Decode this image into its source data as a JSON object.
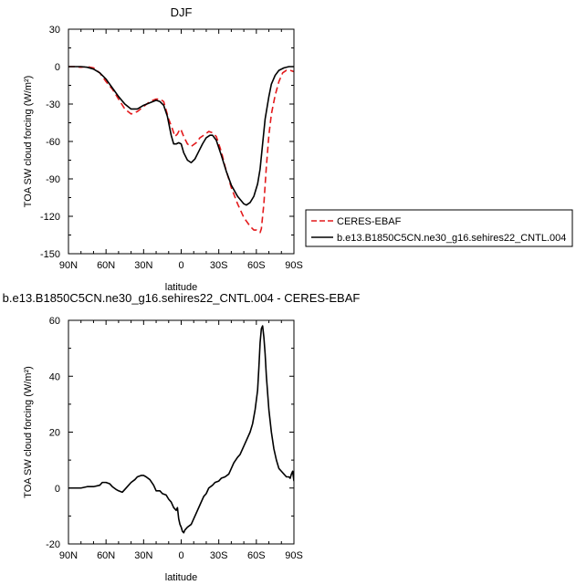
{
  "chart_data": [
    {
      "type": "line",
      "title": "DJF",
      "xlabel": "latitude",
      "ylabel": "TOA SW cloud forcing (W/m²)",
      "xlim": [
        90,
        -90
      ],
      "ylim": [
        -150,
        30
      ],
      "xticks": [
        90,
        60,
        30,
        0,
        -30,
        -60,
        -90
      ],
      "xtick_labels": [
        "90N",
        "60N",
        "30N",
        "0",
        "30S",
        "60S",
        "90S"
      ],
      "yticks": [
        30,
        0,
        -30,
        -60,
        -90,
        -120,
        -150
      ],
      "ytick_labels": [
        "30",
        "0",
        "-30",
        "-60",
        "-90",
        "-120",
        "-150"
      ],
      "legend": "right",
      "series": [
        {
          "name": "CERES-EBAF",
          "color": "#e31a1c",
          "dash": "dashed",
          "x": [
            90,
            85,
            80,
            75,
            70,
            65,
            60,
            55,
            50,
            45,
            40,
            35,
            30,
            25,
            20,
            17,
            14,
            10,
            7,
            5,
            3,
            1,
            0,
            -2,
            -5,
            -8,
            -12,
            -15,
            -18,
            -22,
            -25,
            -28,
            -32,
            -35,
            -40,
            -45,
            -50,
            -55,
            -58,
            -60,
            -63,
            -64,
            -66,
            -68,
            -70,
            -72,
            -75,
            -78,
            -81,
            -84,
            -87,
            -90
          ],
          "y": [
            0,
            0,
            -0.5,
            0,
            -1,
            -5,
            -12,
            -18,
            -26,
            -34,
            -38,
            -36,
            -32,
            -28,
            -26,
            -26,
            -28,
            -42,
            -50,
            -56,
            -54,
            -50,
            -51,
            -56,
            -62,
            -64,
            -61,
            -57,
            -55,
            -52,
            -53,
            -56,
            -68,
            -80,
            -97,
            -110,
            -121,
            -128,
            -131,
            -131,
            -133,
            -130,
            -110,
            -80,
            -55,
            -38,
            -23,
            -12,
            -5,
            -3,
            -3,
            -4
          ]
        },
        {
          "name": "b.e13.B1850C5CN.ne30_g16.sehires22_CNTL.004",
          "color": "#000000",
          "dash": "solid",
          "x": [
            90,
            85,
            80,
            75,
            70,
            65,
            60,
            55,
            50,
            45,
            40,
            35,
            30,
            25,
            20,
            17,
            14,
            11,
            8,
            6,
            4,
            2,
            0,
            -2,
            -5,
            -8,
            -11,
            -14,
            -17,
            -20,
            -23,
            -25,
            -28,
            -32,
            -36,
            -40,
            -45,
            -50,
            -52,
            -55,
            -58,
            -61,
            -63,
            -65,
            -67,
            -70,
            -72,
            -75,
            -78,
            -82,
            -86,
            -90
          ],
          "y": [
            0,
            0,
            0,
            -0.5,
            -2,
            -5,
            -10,
            -17,
            -24,
            -30,
            -34,
            -34,
            -31,
            -29,
            -27,
            -28,
            -31,
            -40,
            -55,
            -62,
            -62,
            -61,
            -62,
            -69,
            -75,
            -77,
            -74,
            -68,
            -62,
            -57,
            -55,
            -55,
            -59,
            -71,
            -84,
            -95,
            -104,
            -110,
            -111,
            -109,
            -104,
            -94,
            -82,
            -62,
            -42,
            -24,
            -14,
            -7,
            -3,
            -1,
            0,
            0
          ]
        }
      ]
    },
    {
      "type": "line",
      "title": "b.e13.B1850C5CN.ne30_g16.sehires22_CNTL.004 - CERES-EBAF",
      "xlabel": "latitude",
      "ylabel": "TOA SW cloud forcing (W/m²)",
      "xlim": [
        90,
        -90
      ],
      "ylim": [
        -20,
        60
      ],
      "xticks": [
        90,
        60,
        30,
        0,
        -30,
        -60,
        -90
      ],
      "xtick_labels": [
        "90N",
        "60N",
        "30N",
        "0",
        "30S",
        "60S",
        "90S"
      ],
      "yticks": [
        60,
        40,
        20,
        0,
        -20
      ],
      "ytick_labels": [
        "60",
        "40",
        "20",
        "0",
        "-20"
      ],
      "series": [
        {
          "color": "#000000",
          "dash": "solid",
          "x": [
            90,
            85,
            80,
            75,
            70,
            65,
            63,
            60,
            57,
            55,
            52,
            50,
            47,
            45,
            42,
            40,
            37,
            35,
            32,
            30,
            28,
            25,
            22,
            20,
            17,
            15,
            12,
            10,
            8,
            6,
            4,
            3,
            2,
            1,
            0,
            -1,
            -2,
            -3,
            -5,
            -8,
            -10,
            -12,
            -15,
            -18,
            -20,
            -22,
            -25,
            -27,
            -30,
            -32,
            -35,
            -38,
            -40,
            -42,
            -45,
            -47,
            -50,
            -52,
            -55,
            -57,
            -59,
            -61,
            -62,
            -63,
            -64,
            -65,
            -66,
            -67,
            -68,
            -70,
            -72,
            -74,
            -76,
            -78,
            -80,
            -82,
            -84,
            -86,
            -87,
            -88,
            -89,
            -90
          ],
          "y": [
            0,
            0,
            0,
            0.5,
            0.5,
            1,
            2,
            2,
            1.5,
            0.5,
            -0.5,
            -1,
            -1.5,
            -0.5,
            1,
            2,
            3,
            4,
            4.5,
            4.5,
            4,
            3,
            1,
            -1,
            -1,
            -2,
            -2.5,
            -4,
            -5,
            -7,
            -8,
            -7,
            -11,
            -13,
            -14,
            -15.5,
            -16,
            -15,
            -14,
            -13,
            -11,
            -9,
            -6,
            -3,
            -2,
            0,
            1,
            2,
            2.5,
            3.5,
            4,
            5,
            7,
            9,
            11,
            12,
            15,
            17,
            20,
            23,
            28,
            35,
            43,
            52,
            57,
            58,
            54,
            48,
            40,
            28,
            20,
            14,
            10,
            7,
            6,
            5,
            4,
            4,
            3.5,
            5,
            6,
            2.5
          ]
        }
      ]
    }
  ]
}
